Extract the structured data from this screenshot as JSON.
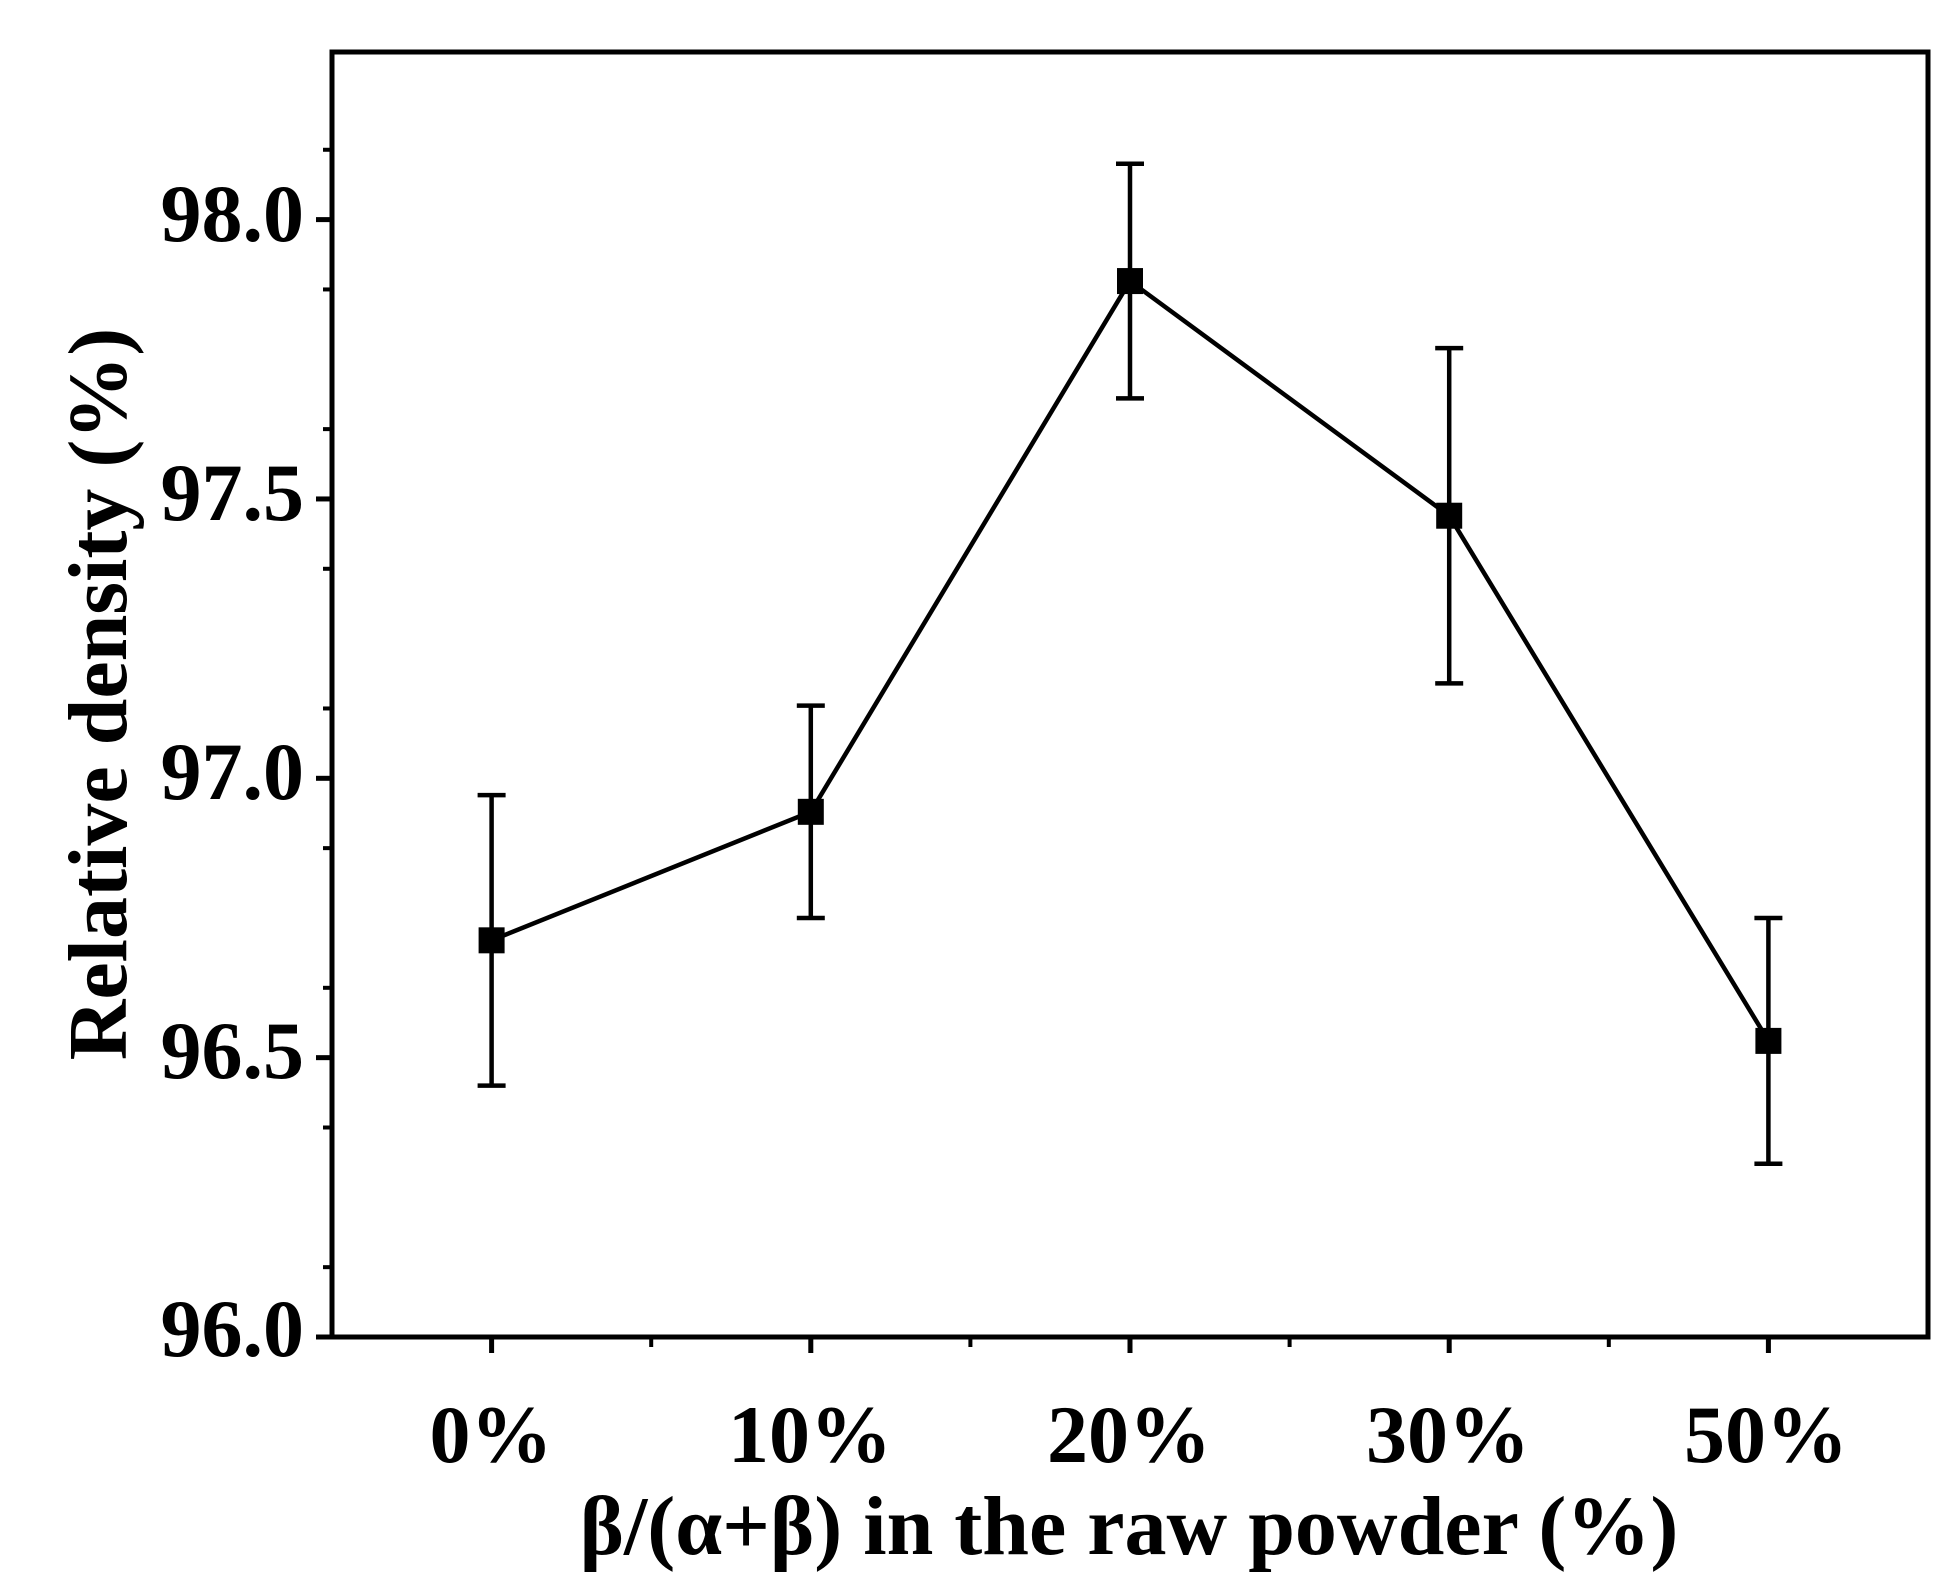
{
  "chart_data": {
    "type": "line",
    "title": "",
    "xlabel": "β/(α+β) in the raw powder (%)",
    "ylabel": "Relative density (%)",
    "categories": [
      "0%",
      "10%",
      "20%",
      "30%",
      "50%"
    ],
    "ylim": [
      96.0,
      98.3
    ],
    "yticks": [
      "96.0",
      "96.5",
      "97.0",
      "97.5",
      "98.0"
    ],
    "ytick_values": [
      96.0,
      96.5,
      97.0,
      97.5,
      98.0
    ],
    "y_minor_step": 0.125,
    "grid": false,
    "legend": "none",
    "series": [
      {
        "name": "Relative density",
        "values": [
          96.71,
          96.94,
          97.89,
          97.47,
          96.53
        ],
        "err_upper": [
          96.97,
          97.13,
          98.1,
          97.77,
          96.75
        ],
        "err_lower": [
          96.45,
          96.75,
          97.68,
          97.17,
          96.31
        ],
        "marker": "square",
        "color": "#000000"
      }
    ]
  }
}
